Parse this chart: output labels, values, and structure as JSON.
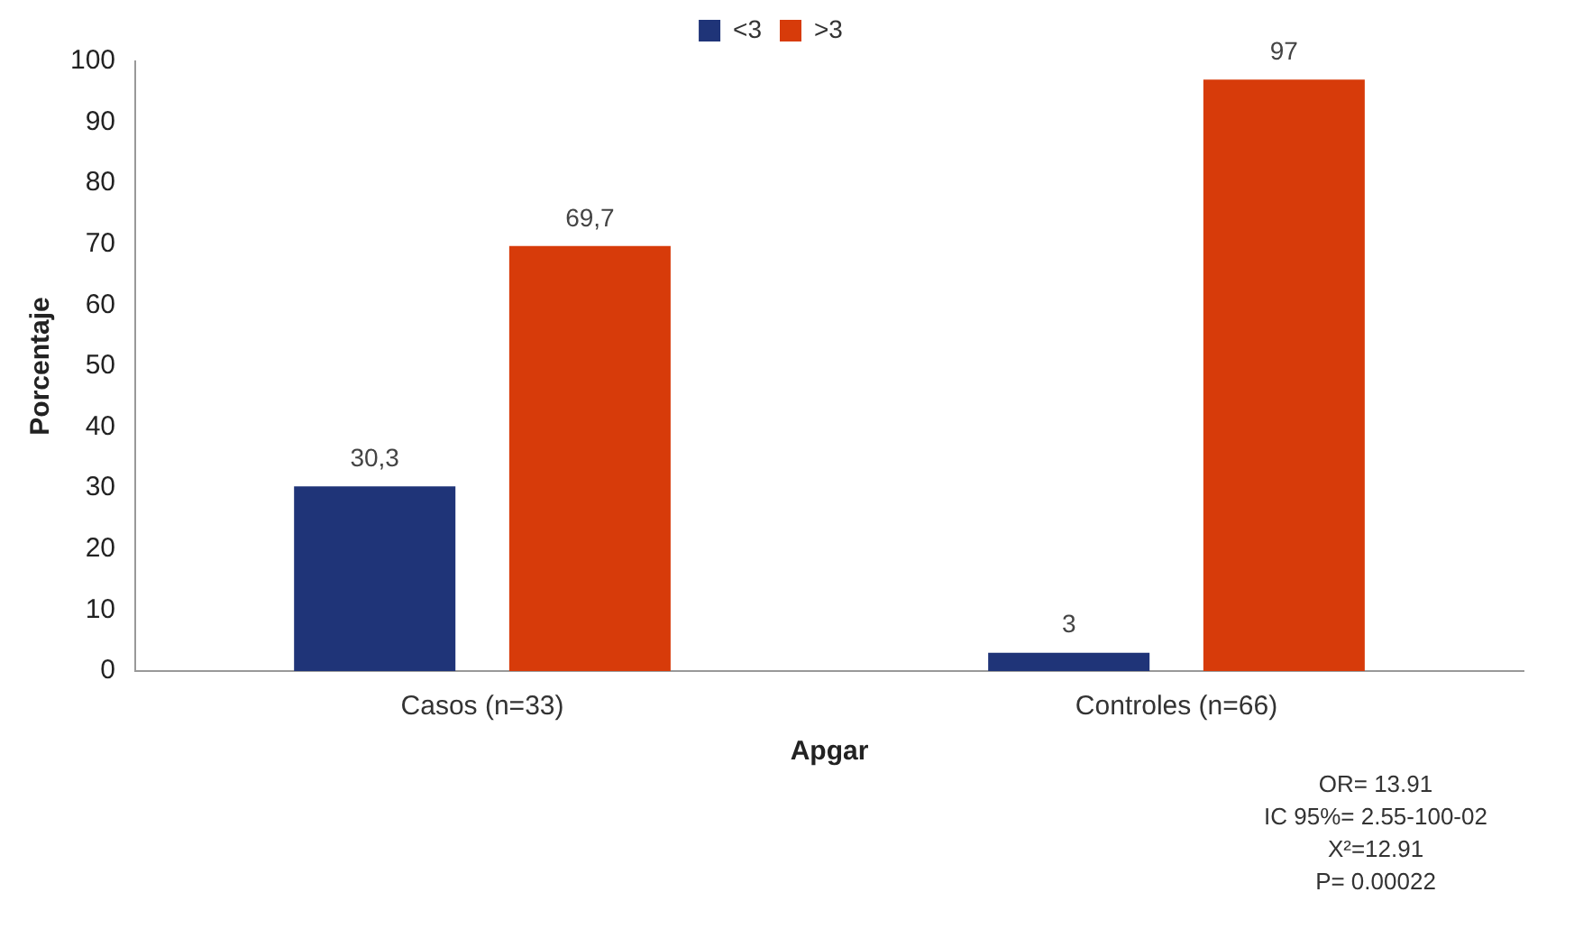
{
  "chart_data": {
    "type": "bar",
    "xlabel": "Apgar",
    "ylabel": "Porcentaje",
    "categories": [
      "Casos (n=33)",
      "Controles (n=66)"
    ],
    "series": [
      {
        "name": "<3",
        "color": "#1f3478",
        "values": [
          30.3,
          3
        ],
        "value_labels": [
          "30,3",
          "3"
        ]
      },
      {
        "name": ">3",
        "color": "#d73b0a",
        "values": [
          69.7,
          97
        ],
        "value_labels": [
          "69,7",
          "97"
        ]
      }
    ],
    "ylim": [
      0,
      100
    ],
    "yticks": [
      0,
      10,
      20,
      30,
      40,
      50,
      60,
      70,
      80,
      90,
      100
    ],
    "grid": false,
    "legend": "top",
    "annotations": [
      "OR= 13.91",
      "IC 95%= 2.55-100-02",
      "X²=12.91",
      "P= 0.00022"
    ]
  }
}
